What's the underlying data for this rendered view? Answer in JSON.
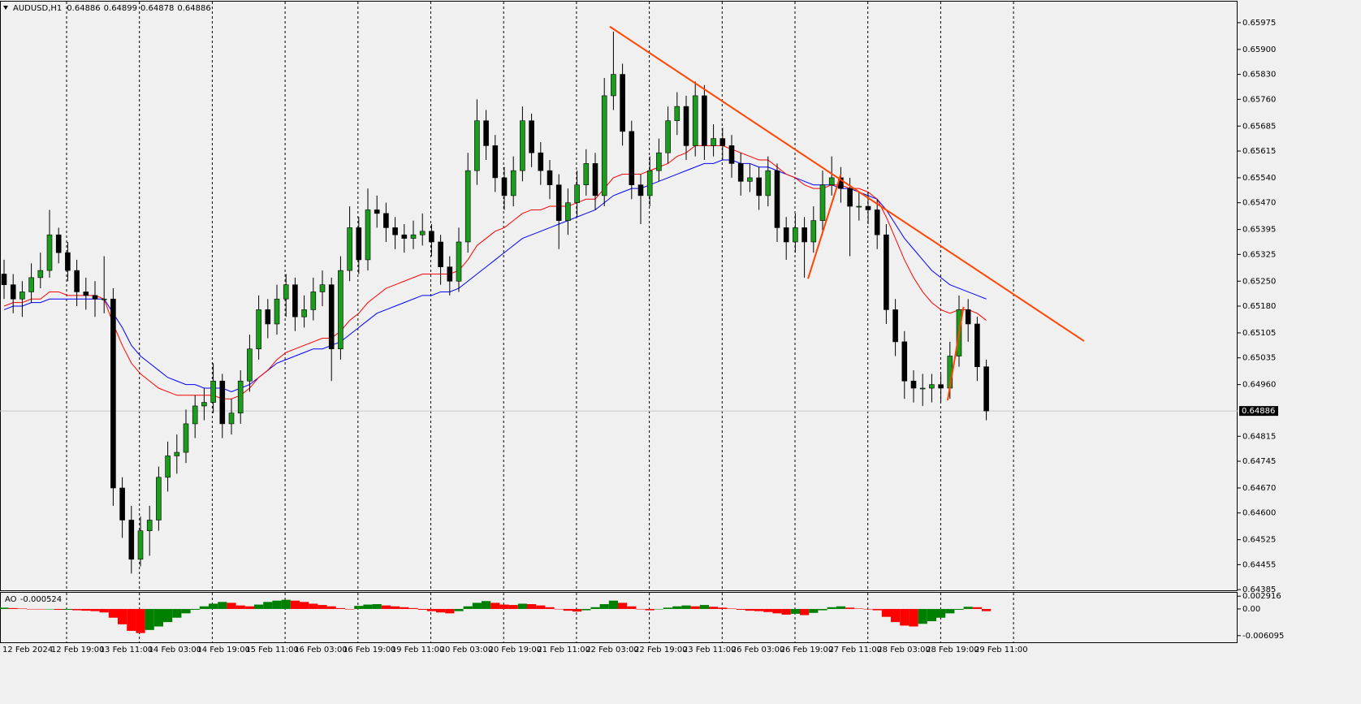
{
  "chart_data": [
    {
      "type": "candlestick",
      "header": {
        "symbol": "AUDUSD,H1",
        "ohlc": [
          0.64886,
          0.64899,
          0.64878,
          0.64886
        ]
      },
      "ylim": [
        0.64383,
        0.66034
      ],
      "yticks": [
        0.65975,
        {
          "value": 0.659,
          "label": "0.65900"
        },
        {
          "value": 0.6583,
          "label": "0.65830"
        },
        {
          "value": 0.6576,
          "label": "0.65760"
        },
        0.65685,
        0.65615,
        {
          "value": 0.6554,
          "label": "0.65540"
        },
        {
          "value": 0.6547,
          "label": "0.65470"
        },
        0.65395,
        0.65325,
        {
          "value": 0.6525,
          "label": "0.65250"
        },
        {
          "value": 0.6518,
          "label": "0.65180"
        },
        0.65105,
        0.65035,
        {
          "value": 0.6496,
          "label": "0.64960"
        },
        0.64815,
        0.64745,
        {
          "value": 0.6467,
          "label": "0.64670"
        },
        {
          "value": 0.646,
          "label": "0.64600"
        },
        0.64525,
        0.64455,
        0.64385
      ],
      "last_price": 0.64886,
      "time_labels": [
        "12 Feb 2024",
        "12 Feb 19:00",
        "13 Feb 11:00",
        "14 Feb 03:00",
        "14 Feb 19:00",
        "15 Feb 11:00",
        "16 Feb 03:00",
        "16 Feb 19:00",
        "19 Feb 11:00",
        "20 Feb 03:00",
        "20 Feb 19:00",
        "21 Feb 11:00",
        "22 Feb 03:00",
        "22 Feb 19:00",
        "23 Feb 11:00",
        "26 Feb 03:00",
        "26 Feb 19:00",
        "27 Feb 11:00",
        "28 Feb 03:00",
        "28 Feb 19:00",
        "29 Feb 11:00"
      ],
      "ohlc": [
        [
          0.6527,
          0.6531,
          0.652,
          0.6524
        ],
        [
          0.6524,
          0.6527,
          0.6516,
          0.652
        ],
        [
          0.652,
          0.6525,
          0.6515,
          0.6522
        ],
        [
          0.6522,
          0.653,
          0.6519,
          0.6526
        ],
        [
          0.6526,
          0.6533,
          0.6523,
          0.6528
        ],
        [
          0.6528,
          0.6545,
          0.6526,
          0.6538
        ],
        [
          0.6538,
          0.654,
          0.653,
          0.6533
        ],
        [
          0.6533,
          0.6536,
          0.6525,
          0.6528
        ],
        [
          0.6528,
          0.6531,
          0.6518,
          0.6522
        ],
        [
          0.6522,
          0.6526,
          0.6517,
          0.6521
        ],
        [
          0.6521,
          0.6525,
          0.6515,
          0.652
        ],
        [
          0.652,
          0.6532,
          0.6516,
          0.652
        ],
        [
          0.652,
          0.6523,
          0.6462,
          0.6467
        ],
        [
          0.6467,
          0.647,
          0.6453,
          0.6458
        ],
        [
          0.6458,
          0.6462,
          0.6443,
          0.6447
        ],
        [
          0.6447,
          0.6459,
          0.6445,
          0.6455
        ],
        [
          0.6455,
          0.6462,
          0.6448,
          0.6458
        ],
        [
          0.6458,
          0.6473,
          0.6455,
          0.647
        ],
        [
          0.647,
          0.648,
          0.6466,
          0.6476
        ],
        [
          0.6476,
          0.6482,
          0.6471,
          0.6477
        ],
        [
          0.6477,
          0.6489,
          0.6474,
          0.6485
        ],
        [
          0.6485,
          0.6493,
          0.6481,
          0.649
        ],
        [
          0.649,
          0.6495,
          0.6486,
          0.6491
        ],
        [
          0.6491,
          0.6502,
          0.6488,
          0.6497
        ],
        [
          0.6497,
          0.6499,
          0.6481,
          0.6485
        ],
        [
          0.6485,
          0.6492,
          0.6482,
          0.6488
        ],
        [
          0.6488,
          0.65,
          0.6485,
          0.6497
        ],
        [
          0.6497,
          0.651,
          0.6494,
          0.6506
        ],
        [
          0.6506,
          0.6521,
          0.6503,
          0.6517
        ],
        [
          0.6517,
          0.652,
          0.6509,
          0.6513
        ],
        [
          0.6513,
          0.6524,
          0.651,
          0.652
        ],
        [
          0.652,
          0.6527,
          0.6515,
          0.6524
        ],
        [
          0.6524,
          0.6526,
          0.6511,
          0.6515
        ],
        [
          0.6515,
          0.6521,
          0.6512,
          0.6517
        ],
        [
          0.6517,
          0.6526,
          0.6514,
          0.6522
        ],
        [
          0.6522,
          0.6528,
          0.6518,
          0.6524
        ],
        [
          0.6524,
          0.6526,
          0.6497,
          0.6506
        ],
        [
          0.6506,
          0.6532,
          0.6503,
          0.6528
        ],
        [
          0.6528,
          0.6546,
          0.6525,
          0.654
        ],
        [
          0.654,
          0.6543,
          0.6527,
          0.6531
        ],
        [
          0.6531,
          0.6551,
          0.6528,
          0.6545
        ],
        [
          0.6545,
          0.6549,
          0.654,
          0.6544
        ],
        [
          0.6544,
          0.6547,
          0.6536,
          0.654
        ],
        [
          0.654,
          0.6543,
          0.6534,
          0.6538
        ],
        [
          0.6538,
          0.6541,
          0.6533,
          0.6537
        ],
        [
          0.6537,
          0.6542,
          0.6534,
          0.6538
        ],
        [
          0.6538,
          0.6544,
          0.6535,
          0.6539
        ],
        [
          0.6539,
          0.6541,
          0.6532,
          0.6536
        ],
        [
          0.6536,
          0.6538,
          0.6524,
          0.6529
        ],
        [
          0.6529,
          0.6532,
          0.6521,
          0.6525
        ],
        [
          0.6525,
          0.654,
          0.6522,
          0.6536
        ],
        [
          0.6536,
          0.6561,
          0.6533,
          0.6556
        ],
        [
          0.6556,
          0.6576,
          0.6552,
          0.657
        ],
        [
          0.657,
          0.6573,
          0.6559,
          0.6563
        ],
        [
          0.6563,
          0.6566,
          0.655,
          0.6554
        ],
        [
          0.6554,
          0.6557,
          0.6545,
          0.6549
        ],
        [
          0.6549,
          0.656,
          0.6546,
          0.6556
        ],
        [
          0.6556,
          0.6574,
          0.6553,
          0.657
        ],
        [
          0.657,
          0.6572,
          0.6557,
          0.6561
        ],
        [
          0.6561,
          0.6564,
          0.6552,
          0.6556
        ],
        [
          0.6556,
          0.6559,
          0.6548,
          0.6552
        ],
        [
          0.6552,
          0.6555,
          0.6534,
          0.6542
        ],
        [
          0.6542,
          0.6551,
          0.6538,
          0.6547
        ],
        [
          0.6547,
          0.6556,
          0.6543,
          0.6552
        ],
        [
          0.6552,
          0.6562,
          0.6549,
          0.6558
        ],
        [
          0.6558,
          0.6561,
          0.6545,
          0.6549
        ],
        [
          0.6549,
          0.6582,
          0.6546,
          0.6577
        ],
        [
          0.6577,
          0.6595,
          0.6573,
          0.6583
        ],
        [
          0.6583,
          0.6586,
          0.6563,
          0.6567
        ],
        [
          0.6567,
          0.657,
          0.6548,
          0.6552
        ],
        [
          0.6552,
          0.6555,
          0.6541,
          0.6549
        ],
        [
          0.6549,
          0.656,
          0.6546,
          0.6556
        ],
        [
          0.6556,
          0.6565,
          0.6553,
          0.6561
        ],
        [
          0.6561,
          0.6574,
          0.6558,
          0.657
        ],
        [
          0.657,
          0.6578,
          0.6566,
          0.6574
        ],
        [
          0.6574,
          0.6577,
          0.6559,
          0.6563
        ],
        [
          0.6563,
          0.6581,
          0.656,
          0.6577
        ],
        [
          0.6577,
          0.658,
          0.6559,
          0.6563
        ],
        [
          0.6563,
          0.6569,
          0.656,
          0.6565
        ],
        [
          0.6565,
          0.6568,
          0.6559,
          0.6563
        ],
        [
          0.6563,
          0.6566,
          0.6554,
          0.6558
        ],
        [
          0.6558,
          0.6561,
          0.6549,
          0.6553
        ],
        [
          0.6553,
          0.6558,
          0.655,
          0.6554
        ],
        [
          0.6554,
          0.6557,
          0.6545,
          0.6549
        ],
        [
          0.6549,
          0.656,
          0.6546,
          0.6556
        ],
        [
          0.6556,
          0.6558,
          0.6536,
          0.654
        ],
        [
          0.654,
          0.6543,
          0.6531,
          0.6536
        ],
        [
          0.6536,
          0.6544,
          0.6533,
          0.654
        ],
        [
          0.654,
          0.6543,
          0.6526,
          0.6536
        ],
        [
          0.6536,
          0.6546,
          0.6533,
          0.6542
        ],
        [
          0.6542,
          0.6556,
          0.6539,
          0.6552
        ],
        [
          0.6552,
          0.656,
          0.6549,
          0.6554
        ],
        [
          0.6554,
          0.6557,
          0.6547,
          0.6551
        ],
        [
          0.6551,
          0.6554,
          0.6532,
          0.6546
        ],
        [
          0.6546,
          0.655,
          0.6542,
          0.6546
        ],
        [
          0.6546,
          0.655,
          0.6541,
          0.6545
        ],
        [
          0.6545,
          0.6548,
          0.6534,
          0.6538
        ],
        [
          0.6538,
          0.6541,
          0.6513,
          0.6517
        ],
        [
          0.6517,
          0.652,
          0.6504,
          0.6508
        ],
        [
          0.6508,
          0.6511,
          0.6492,
          0.6497
        ],
        [
          0.6497,
          0.65,
          0.6491,
          0.6495
        ],
        [
          0.6495,
          0.6499,
          0.649,
          0.6495
        ],
        [
          0.6495,
          0.6499,
          0.6491,
          0.6496
        ],
        [
          0.6496,
          0.6499,
          0.6491,
          0.6495
        ],
        [
          0.6495,
          0.6508,
          0.6492,
          0.6504
        ],
        [
          0.6504,
          0.6521,
          0.6501,
          0.6517
        ],
        [
          0.6517,
          0.652,
          0.6508,
          0.6513
        ],
        [
          0.6513,
          0.6515,
          0.6497,
          0.6501
        ],
        [
          0.6501,
          0.6503,
          0.6486,
          0.64886
        ]
      ],
      "bull_color": "#1c9c1c",
      "bear_color": "#000000",
      "series": [
        {
          "color": "#0000ff",
          "values": [
            0.6517,
            0.6518,
            0.6518,
            0.6519,
            0.6519,
            0.652,
            0.652,
            0.652,
            0.652,
            0.652,
            0.652,
            0.652,
            0.6516,
            0.6512,
            0.6507,
            0.6504,
            0.6502,
            0.65,
            0.6498,
            0.6497,
            0.6496,
            0.6496,
            0.6495,
            0.6495,
            0.6495,
            0.6494,
            0.6495,
            0.6496,
            0.6498,
            0.65,
            0.6502,
            0.6503,
            0.6504,
            0.6505,
            0.6506,
            0.6506,
            0.6507,
            0.6508,
            0.651,
            0.6512,
            0.6514,
            0.6516,
            0.6517,
            0.6518,
            0.6519,
            0.652,
            0.6521,
            0.6521,
            0.6522,
            0.6522,
            0.6523,
            0.6525,
            0.6527,
            0.6529,
            0.6531,
            0.6533,
            0.6535,
            0.6537,
            0.6538,
            0.6539,
            0.654,
            0.6541,
            0.6542,
            0.6543,
            0.6544,
            0.6545,
            0.6547,
            0.6549,
            0.655,
            0.6551,
            0.6551,
            0.6552,
            0.6553,
            0.6554,
            0.6555,
            0.6556,
            0.6557,
            0.6558,
            0.6558,
            0.6559,
            0.6559,
            0.6558,
            0.6558,
            0.6557,
            0.6557,
            0.6556,
            0.6555,
            0.6554,
            0.6553,
            0.6552,
            0.6552,
            0.6552,
            0.6551,
            0.6551,
            0.655,
            0.6549,
            0.6548,
            0.6545,
            0.6541,
            0.6537,
            0.6534,
            0.6531,
            0.6528,
            0.6526,
            0.6524,
            0.6523,
            0.6522,
            0.6521,
            0.652
          ]
        },
        {
          "color": "#ff0000",
          "values": [
            0.6518,
            0.6519,
            0.6519,
            0.652,
            0.652,
            0.6522,
            0.6522,
            0.6521,
            0.6521,
            0.6521,
            0.6521,
            0.652,
            0.6513,
            0.6507,
            0.6502,
            0.6499,
            0.6497,
            0.6495,
            0.6494,
            0.6493,
            0.6493,
            0.6493,
            0.6493,
            0.6493,
            0.6492,
            0.6492,
            0.6493,
            0.6495,
            0.6498,
            0.65,
            0.6503,
            0.6505,
            0.6506,
            0.6507,
            0.6508,
            0.6509,
            0.6509,
            0.6511,
            0.6514,
            0.6516,
            0.6519,
            0.6521,
            0.6523,
            0.6524,
            0.6525,
            0.6526,
            0.6527,
            0.6527,
            0.6527,
            0.6527,
            0.6528,
            0.6531,
            0.6535,
            0.6537,
            0.6539,
            0.654,
            0.6542,
            0.6544,
            0.6545,
            0.6545,
            0.6546,
            0.6546,
            0.6546,
            0.6547,
            0.6548,
            0.6548,
            0.6551,
            0.6554,
            0.6555,
            0.6555,
            0.6555,
            0.6556,
            0.6557,
            0.6558,
            0.656,
            0.6561,
            0.6563,
            0.6563,
            0.6563,
            0.6563,
            0.6562,
            0.6561,
            0.656,
            0.6559,
            0.6559,
            0.6557,
            0.6555,
            0.6554,
            0.6552,
            0.6551,
            0.6551,
            0.6552,
            0.6552,
            0.6551,
            0.6551,
            0.655,
            0.6548,
            0.6543,
            0.6537,
            0.6531,
            0.6526,
            0.6522,
            0.6519,
            0.6517,
            0.6516,
            0.6517,
            0.6517,
            0.6516,
            0.6514
          ]
        }
      ],
      "lines": [
        {
          "color": "#ff4500",
          "x": [
            66.6,
            118.75
          ],
          "y": [
            0.65964,
            0.65082
          ]
        },
        {
          "color": "#ff4500",
          "x": [
            88.4,
            92.0
          ],
          "y": [
            0.65257,
            0.65549
          ]
        },
        {
          "color": "#ff4500",
          "x": [
            103.75,
            105.5
          ],
          "y": [
            0.64916,
            0.65178
          ]
        }
      ]
    },
    {
      "type": "bar",
      "name": "AO",
      "current": -0.000524,
      "ylim": [
        -0.0078,
        0.0037
      ],
      "yticks": [
        0.002916,
        {
          "value": 0,
          "label": "0.00"
        },
        -0.006095
      ],
      "up_color": "#008000",
      "down_color": "#ff0000",
      "values": [
        0.0003,
        0.0002,
        0.0001,
        0.0,
        -0.0001,
        -0.0001,
        -0.0002,
        -0.0002,
        -0.0003,
        -0.0004,
        -0.0005,
        -0.0008,
        -0.002,
        -0.0035,
        -0.005,
        -0.0055,
        -0.0048,
        -0.004,
        -0.003,
        -0.002,
        -0.001,
        -0.0002,
        0.0006,
        0.0012,
        0.0016,
        0.0014,
        0.0008,
        0.0006,
        0.001,
        0.0016,
        0.0019,
        0.0021,
        0.0019,
        0.0016,
        0.0012,
        0.0009,
        0.0006,
        0.0002,
        -0.0001,
        0.0007,
        0.001,
        0.0011,
        0.0008,
        0.0006,
        0.0004,
        0.0002,
        -0.0002,
        -0.0005,
        -0.0008,
        -0.001,
        -0.0005,
        0.0006,
        0.0014,
        0.0018,
        0.0014,
        0.001,
        0.0009,
        0.0012,
        0.0011,
        0.0008,
        0.0004,
        0.0,
        -0.0004,
        -0.0006,
        -0.0003,
        0.0004,
        0.0011,
        0.0019,
        0.0014,
        0.0006,
        -0.0001,
        -0.0003,
        -0.0001,
        0.0003,
        0.0006,
        0.0008,
        0.0006,
        0.0009,
        0.0005,
        0.0003,
        0.0001,
        -0.0002,
        -0.0004,
        -0.0005,
        -0.0007,
        -0.001,
        -0.0013,
        -0.0011,
        -0.0014,
        -0.0009,
        -0.0003,
        0.0004,
        0.0006,
        0.0003,
        0.0001,
        -0.0001,
        -0.0003,
        -0.0018,
        -0.003,
        -0.0038,
        -0.004,
        -0.0034,
        -0.0028,
        -0.002,
        -0.001,
        -0.0002,
        0.0005,
        0.0004,
        -0.0005
      ]
    }
  ]
}
